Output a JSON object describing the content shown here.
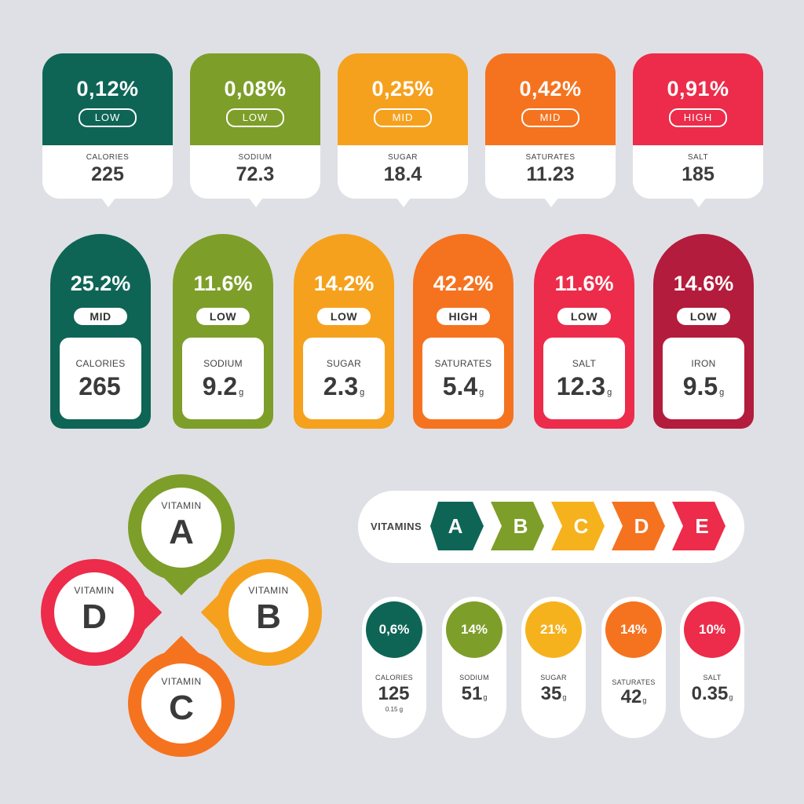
{
  "row1": [
    {
      "percent": "0,12%",
      "level": "LOW",
      "name": "CALORIES",
      "value": "225",
      "color": "#0e6556"
    },
    {
      "percent": "0,08%",
      "level": "LOW",
      "name": "SODIUM",
      "value": "72.3",
      "color": "#7e9e2a"
    },
    {
      "percent": "0,25%",
      "level": "MID",
      "name": "SUGAR",
      "value": "18.4",
      "color": "#f6a11d"
    },
    {
      "percent": "0,42%",
      "level": "MID",
      "name": "SATURATES",
      "value": "11.23",
      "color": "#f5731f"
    },
    {
      "percent": "0,91%",
      "level": "HIGH",
      "name": "SALT",
      "value": "185",
      "color": "#ec2c4a"
    }
  ],
  "row2": [
    {
      "percent": "25.2%",
      "level": "MID",
      "name": "CALORIES",
      "value": "265",
      "unit": "",
      "color": "#0e6556"
    },
    {
      "percent": "11.6%",
      "level": "LOW",
      "name": "SODIUM",
      "value": "9.2",
      "unit": "g",
      "color": "#7e9e2a"
    },
    {
      "percent": "14.2%",
      "level": "LOW",
      "name": "SUGAR",
      "value": "2.3",
      "unit": "g",
      "color": "#f6a11d"
    },
    {
      "percent": "42.2%",
      "level": "HIGH",
      "name": "SATURATES",
      "value": "5.4",
      "unit": "g",
      "color": "#f5731f"
    },
    {
      "percent": "11.6%",
      "level": "LOW",
      "name": "SALT",
      "value": "12.3",
      "unit": "g",
      "color": "#ec2c4a"
    },
    {
      "percent": "14.6%",
      "level": "LOW",
      "name": "IRON",
      "value": "9.5",
      "unit": "g",
      "color": "#b31c3c"
    }
  ],
  "vitamin_pins": [
    {
      "caption": "VITAMIN",
      "letter": "A",
      "color": "#7e9e2a"
    },
    {
      "caption": "VITAMIN",
      "letter": "B",
      "color": "#f6a11d"
    },
    {
      "caption": "VITAMIN",
      "letter": "C",
      "color": "#f5731f"
    },
    {
      "caption": "VITAMIN",
      "letter": "D",
      "color": "#ec2c4a"
    }
  ],
  "vitamin_scale": {
    "label": "VITAMINS",
    "grades": [
      {
        "letter": "A",
        "color": "#0e6556"
      },
      {
        "letter": "B",
        "color": "#7e9e2a"
      },
      {
        "letter": "C",
        "color": "#f6b21d"
      },
      {
        "letter": "D",
        "color": "#f5731f"
      },
      {
        "letter": "E",
        "color": "#ec2c4a"
      }
    ]
  },
  "row4": [
    {
      "percent": "0,6%",
      "name": "CALORIES",
      "value": "125",
      "unit": "",
      "sub": "0.15 g",
      "color": "#0e6556"
    },
    {
      "percent": "14%",
      "name": "SODIUM",
      "value": "51",
      "unit": "g",
      "sub": "",
      "color": "#7e9e2a"
    },
    {
      "percent": "21%",
      "name": "SUGAR",
      "value": "35",
      "unit": "g",
      "sub": "",
      "color": "#f6b21d"
    },
    {
      "percent": "14%",
      "name": "SATURATES",
      "value": "42",
      "unit": "g",
      "sub": "",
      "color": "#f5731f"
    },
    {
      "percent": "10%",
      "name": "SALT",
      "value": "0.35",
      "unit": "g",
      "sub": "",
      "color": "#ec2c4a"
    }
  ]
}
